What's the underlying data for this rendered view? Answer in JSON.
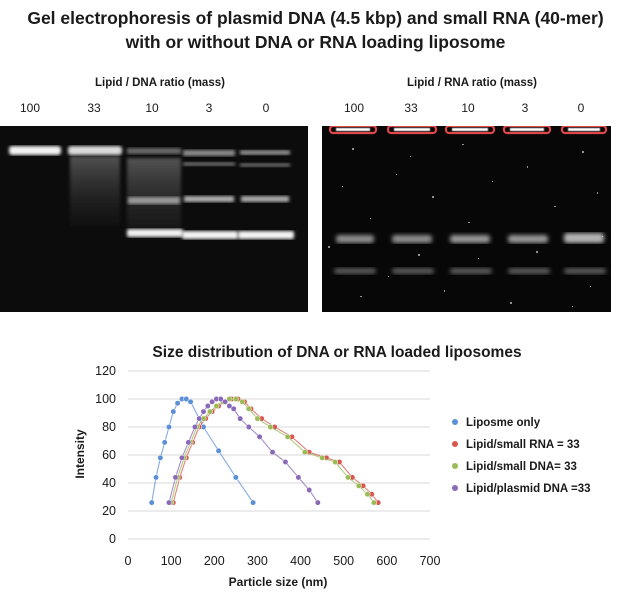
{
  "title_line1": "Gel electrophoresis of plasmid DNA (4.5 kbp)  and small RNA (40-mer)",
  "title_line2": "with or without DNA or RNA loading liposome",
  "gel_dna": {
    "axis_label": "Lipid / DNA ratio (mass)",
    "lanes": [
      "100",
      "33",
      "10",
      "3",
      "0"
    ]
  },
  "gel_rna": {
    "axis_label": "Lipid / RNA ratio (mass)",
    "lanes": [
      "100",
      "33",
      "10",
      "3",
      "0"
    ]
  },
  "chart_data": {
    "type": "scatter",
    "title": "Size distribution  of DNA or RNA loaded liposomes",
    "xlabel": "Particle size (nm)",
    "ylabel": "Intensity",
    "xlim": [
      0,
      700
    ],
    "ylim": [
      0,
      120
    ],
    "xticks": [
      0,
      100,
      200,
      300,
      400,
      500,
      600,
      700
    ],
    "yticks": [
      0,
      20,
      40,
      60,
      80,
      100,
      120
    ],
    "grid": "horizontal",
    "legend_position": "right",
    "series": [
      {
        "name": "Liposme only",
        "color": "#5b8fd6",
        "x": [
          55,
          65,
          75,
          85,
          95,
          105,
          115,
          125,
          135,
          145,
          175,
          210,
          250,
          290
        ],
        "y": [
          26,
          44,
          58,
          69,
          80,
          91,
          97,
          100,
          100,
          98,
          80,
          63,
          44,
          26
        ]
      },
      {
        "name": "Lipid/small RNA = 33",
        "color": "#d9574f",
        "x": [
          105,
          120,
          135,
          150,
          165,
          180,
          195,
          210,
          225,
          240,
          255,
          270,
          285,
          310,
          340,
          380,
          420,
          460,
          490,
          520,
          545,
          565,
          580
        ],
        "y": [
          26,
          44,
          58,
          69,
          80,
          86,
          91,
          95,
          98,
          100,
          100,
          98,
          93,
          86,
          80,
          73,
          62,
          58,
          55,
          44,
          38,
          32,
          26
        ]
      },
      {
        "name": "Lipid/small DNA= 33",
        "color": "#9bbb59",
        "x": [
          100,
          115,
          130,
          145,
          160,
          175,
          190,
          205,
          220,
          235,
          250,
          265,
          280,
          300,
          330,
          370,
          410,
          450,
          480,
          510,
          535,
          555,
          570
        ],
        "y": [
          26,
          44,
          58,
          69,
          80,
          86,
          91,
          95,
          98,
          100,
          100,
          98,
          93,
          86,
          80,
          73,
          62,
          58,
          55,
          44,
          38,
          32,
          26
        ]
      },
      {
        "name": "Lipid/plasmid DNA =33",
        "color": "#8a6ab8",
        "x": [
          95,
          110,
          125,
          140,
          155,
          165,
          175,
          185,
          195,
          205,
          215,
          225,
          235,
          245,
          260,
          280,
          305,
          335,
          365,
          395,
          420,
          440
        ],
        "y": [
          26,
          44,
          58,
          69,
          80,
          86,
          91,
          95,
          98,
          100,
          100,
          98,
          95,
          93,
          86,
          80,
          73,
          62,
          55,
          44,
          35,
          26
        ]
      }
    ]
  }
}
